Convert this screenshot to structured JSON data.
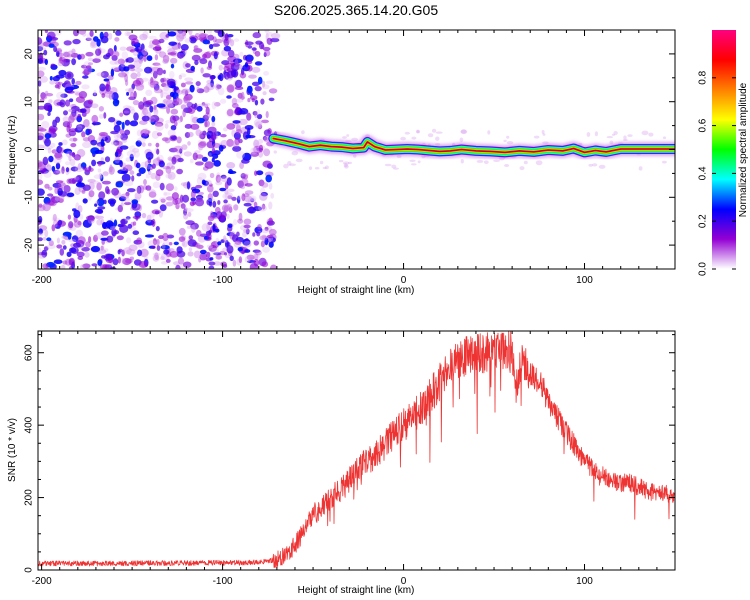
{
  "chart_data": [
    {
      "type": "heatmap",
      "title": "S206.2025.365.14.20.G05",
      "xlabel": "Height of straight line (km)",
      "ylabel": "Frequency (Hz)",
      "xlim": [
        -202,
        150
      ],
      "ylim": [
        -25,
        25
      ],
      "x_ticks": [
        -200,
        -100,
        0,
        100
      ],
      "x_tick_labels": [
        "-200",
        "-100",
        "0",
        "100"
      ],
      "y_ticks": [
        -20,
        -10,
        0,
        10,
        20
      ],
      "y_tick_labels": [
        "-20",
        "-10",
        "0",
        "10",
        "20"
      ],
      "noise_region": {
        "x_range": [
          -202,
          -72
        ],
        "y_range": [
          -25,
          25
        ]
      },
      "ridge": {
        "x": [
          -72,
          -65,
          -58,
          -52,
          -46,
          -40,
          -34,
          -28,
          -22,
          -20,
          -16,
          -10,
          -4,
          2,
          8,
          14,
          20,
          26,
          32,
          40,
          48,
          56,
          64,
          72,
          80,
          88,
          94,
          100,
          106,
          112,
          120,
          130,
          140,
          150
        ],
        "y": [
          2.3,
          1.8,
          1.2,
          0.6,
          0.9,
          0.6,
          0.5,
          0.2,
          0.4,
          1.6,
          0.6,
          -0.1,
          0.0,
          0.1,
          0.0,
          -0.2,
          -0.4,
          -0.3,
          0.0,
          -0.3,
          -0.4,
          -0.6,
          -0.3,
          -0.5,
          -0.1,
          -0.3,
          0.2,
          -0.6,
          -0.2,
          -0.5,
          0.1,
          0.1,
          0.1,
          0.1
        ]
      },
      "colorbar": {
        "label": "Normalized spectral amplitude",
        "range": [
          0,
          1
        ],
        "ticks": [
          0.0,
          0.2,
          0.4,
          0.6,
          0.8
        ],
        "tick_labels": [
          "0.0",
          "0.2",
          "0.4",
          "0.6",
          "0.8"
        ],
        "colors": [
          "#ffffff",
          "#9400d3",
          "#0000ff",
          "#00ffff",
          "#00ff00",
          "#ffff00",
          "#ff8000",
          "#ff0000",
          "#ff0080"
        ]
      }
    },
    {
      "type": "line",
      "xlabel": "Height of straight line (km)",
      "ylabel": "SNR (10 * v/v)",
      "xlim": [
        -202,
        150
      ],
      "ylim": [
        0,
        660
      ],
      "x_ticks": [
        -200,
        -100,
        0,
        100
      ],
      "x_tick_labels": [
        "-200",
        "-100",
        "0",
        "100"
      ],
      "y_ticks": [
        0,
        200,
        400,
        600
      ],
      "y_tick_labels": [
        "0",
        "200",
        "400",
        "600"
      ],
      "line_color": "#ee3333",
      "series": [
        {
          "name": "SNR",
          "x": [
            -202,
            -180,
            -160,
            -140,
            -120,
            -100,
            -90,
            -80,
            -75,
            -70,
            -65,
            -60,
            -55,
            -50,
            -45,
            -40,
            -35,
            -30,
            -25,
            -20,
            -15,
            -10,
            -5,
            0,
            5,
            10,
            15,
            20,
            25,
            30,
            35,
            40,
            45,
            50,
            55,
            60,
            62,
            65,
            70,
            75,
            80,
            85,
            90,
            95,
            100,
            105,
            110,
            115,
            120,
            125,
            130,
            135,
            140,
            145,
            150
          ],
          "y": [
            18,
            18,
            18,
            19,
            19,
            20,
            20,
            22,
            25,
            30,
            40,
            70,
            110,
            150,
            180,
            200,
            220,
            250,
            280,
            300,
            320,
            350,
            380,
            400,
            420,
            450,
            480,
            520,
            560,
            580,
            590,
            595,
            600,
            605,
            610,
            600,
            510,
            580,
            540,
            520,
            470,
            420,
            380,
            340,
            300,
            280,
            260,
            250,
            240,
            240,
            230,
            220,
            210,
            210,
            200
          ]
        }
      ]
    }
  ]
}
